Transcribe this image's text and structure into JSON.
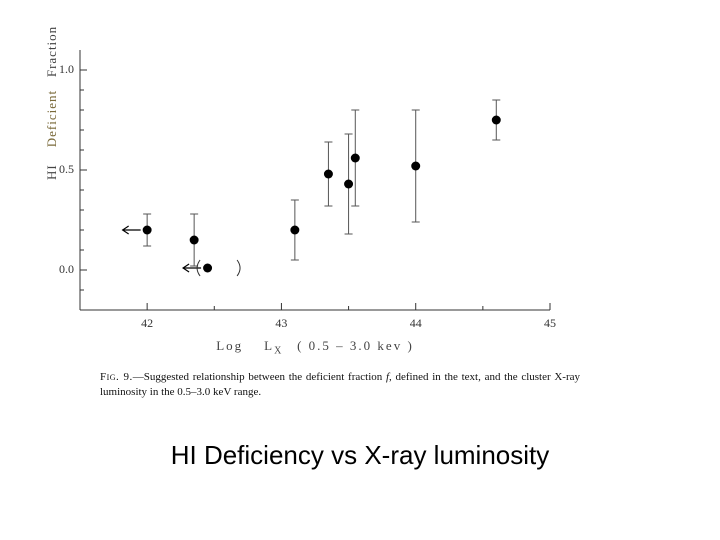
{
  "slide_title": "HI Deficiency vs X-ray luminosity",
  "caption_label": "Fig. 9.",
  "caption_text_1": "—Suggested relationship between the deficient fraction ",
  "caption_f": "f",
  "caption_text_2": ", defined in the text, and the cluster X-ray luminosity in the 0.5–3.0 keV range.",
  "ylabel_a": "HI",
  "ylabel_b": "Deficient",
  "ylabel_c": "Fraction",
  "xlabel_a": "Log",
  "xlabel_b": "L",
  "xlabel_sub": "X",
  "xlabel_c": "( 0.5 – 3.0 kev )",
  "chart": {
    "type": "scatter-errorbar",
    "background_color": "#ffffff",
    "axis_color": "#333333",
    "tick_length_major": 7,
    "tick_length_minor": 4,
    "axis_line_width": 1,
    "xlim": [
      41.5,
      45.0
    ],
    "ylim": [
      -0.2,
      1.1
    ],
    "xticks_major": [
      42,
      43,
      44,
      45
    ],
    "xticks_minor": [
      41.5,
      42.5,
      43.5,
      44.5
    ],
    "yticks_major": [
      0.0,
      0.5,
      1.0
    ],
    "yticks_minor": [
      -0.1,
      0.1,
      0.2,
      0.3,
      0.4,
      0.6,
      0.7,
      0.8,
      0.9
    ],
    "xtick_labels": [
      "42",
      "43",
      "44",
      "45"
    ],
    "ytick_labels": [
      "0.0",
      "0.5",
      "1.0"
    ],
    "tick_label_fontsize": 12,
    "axis_label_fontsize": 13,
    "marker_color": "#000000",
    "marker_radius": 4.5,
    "errorbar_color": "#555555",
    "errorbar_width": 1,
    "cap_halfwidth": 4,
    "arrow_color": "#000000",
    "points": [
      {
        "x": 42.0,
        "y": 0.2,
        "ylo": 0.12,
        "yhi": 0.28,
        "arrow_left": true
      },
      {
        "x": 42.35,
        "y": 0.15,
        "ylo": 0.02,
        "yhi": 0.28
      },
      {
        "x": 42.45,
        "y": 0.01,
        "ylo": 0.01,
        "yhi": 0.01,
        "arrow_left": true,
        "paren": true
      },
      {
        "x": 43.1,
        "y": 0.2,
        "ylo": 0.05,
        "yhi": 0.35
      },
      {
        "x": 43.35,
        "y": 0.48,
        "ylo": 0.32,
        "yhi": 0.64
      },
      {
        "x": 43.5,
        "y": 0.43,
        "ylo": 0.18,
        "yhi": 0.68
      },
      {
        "x": 43.55,
        "y": 0.56,
        "ylo": 0.32,
        "yhi": 0.8
      },
      {
        "x": 44.0,
        "y": 0.52,
        "ylo": 0.24,
        "yhi": 0.8
      },
      {
        "x": 44.6,
        "y": 0.75,
        "ylo": 0.65,
        "yhi": 0.85
      }
    ]
  },
  "colors": {
    "page_bg": "#ffffff",
    "text": "#000000",
    "ylabel_accent": "#7a6a3a"
  }
}
